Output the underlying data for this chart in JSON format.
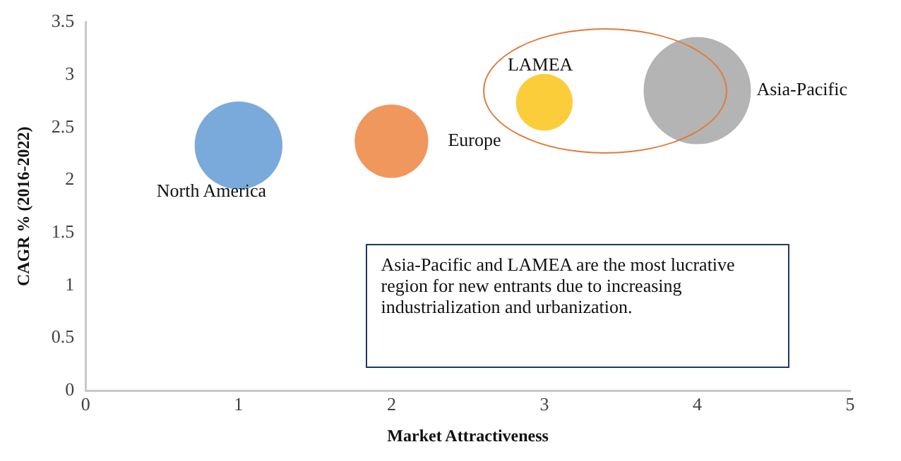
{
  "chart_data": {
    "type": "bubble",
    "xlabel": "Market Attractiveness",
    "ylabel": "CAGR % (2016-2022)",
    "xlim": [
      0,
      5
    ],
    "xticks": [
      0,
      1,
      2,
      3,
      4,
      5
    ],
    "ylim": [
      0,
      3.5
    ],
    "yticks": [
      0,
      0.5,
      1,
      1.5,
      2,
      2.5,
      3,
      3.5
    ],
    "grid": false,
    "legend": false,
    "series": [
      {
        "name": "North America",
        "color": "#7aaadc",
        "x": [
          1
        ],
        "values": [
          2.33
        ],
        "sizes": [
          0.67
        ]
      },
      {
        "name": "Europe",
        "color": "#f0975e",
        "x": [
          2
        ],
        "values": [
          2.37
        ],
        "sizes": [
          0.47
        ]
      },
      {
        "name": "LAMEA",
        "color": "#fccd3a",
        "x": [
          3
        ],
        "values": [
          2.74
        ],
        "sizes": [
          0.28
        ]
      },
      {
        "name": "Asia-Pacific",
        "color": "#b4b4b4",
        "x": [
          4
        ],
        "values": [
          2.85
        ],
        "sizes": [
          1
        ]
      }
    ],
    "annotations": [
      "Asia-Pacific and LAMEA are the most lucrative region for new entrants due to increasing industrialization and urbanization."
    ]
  }
}
